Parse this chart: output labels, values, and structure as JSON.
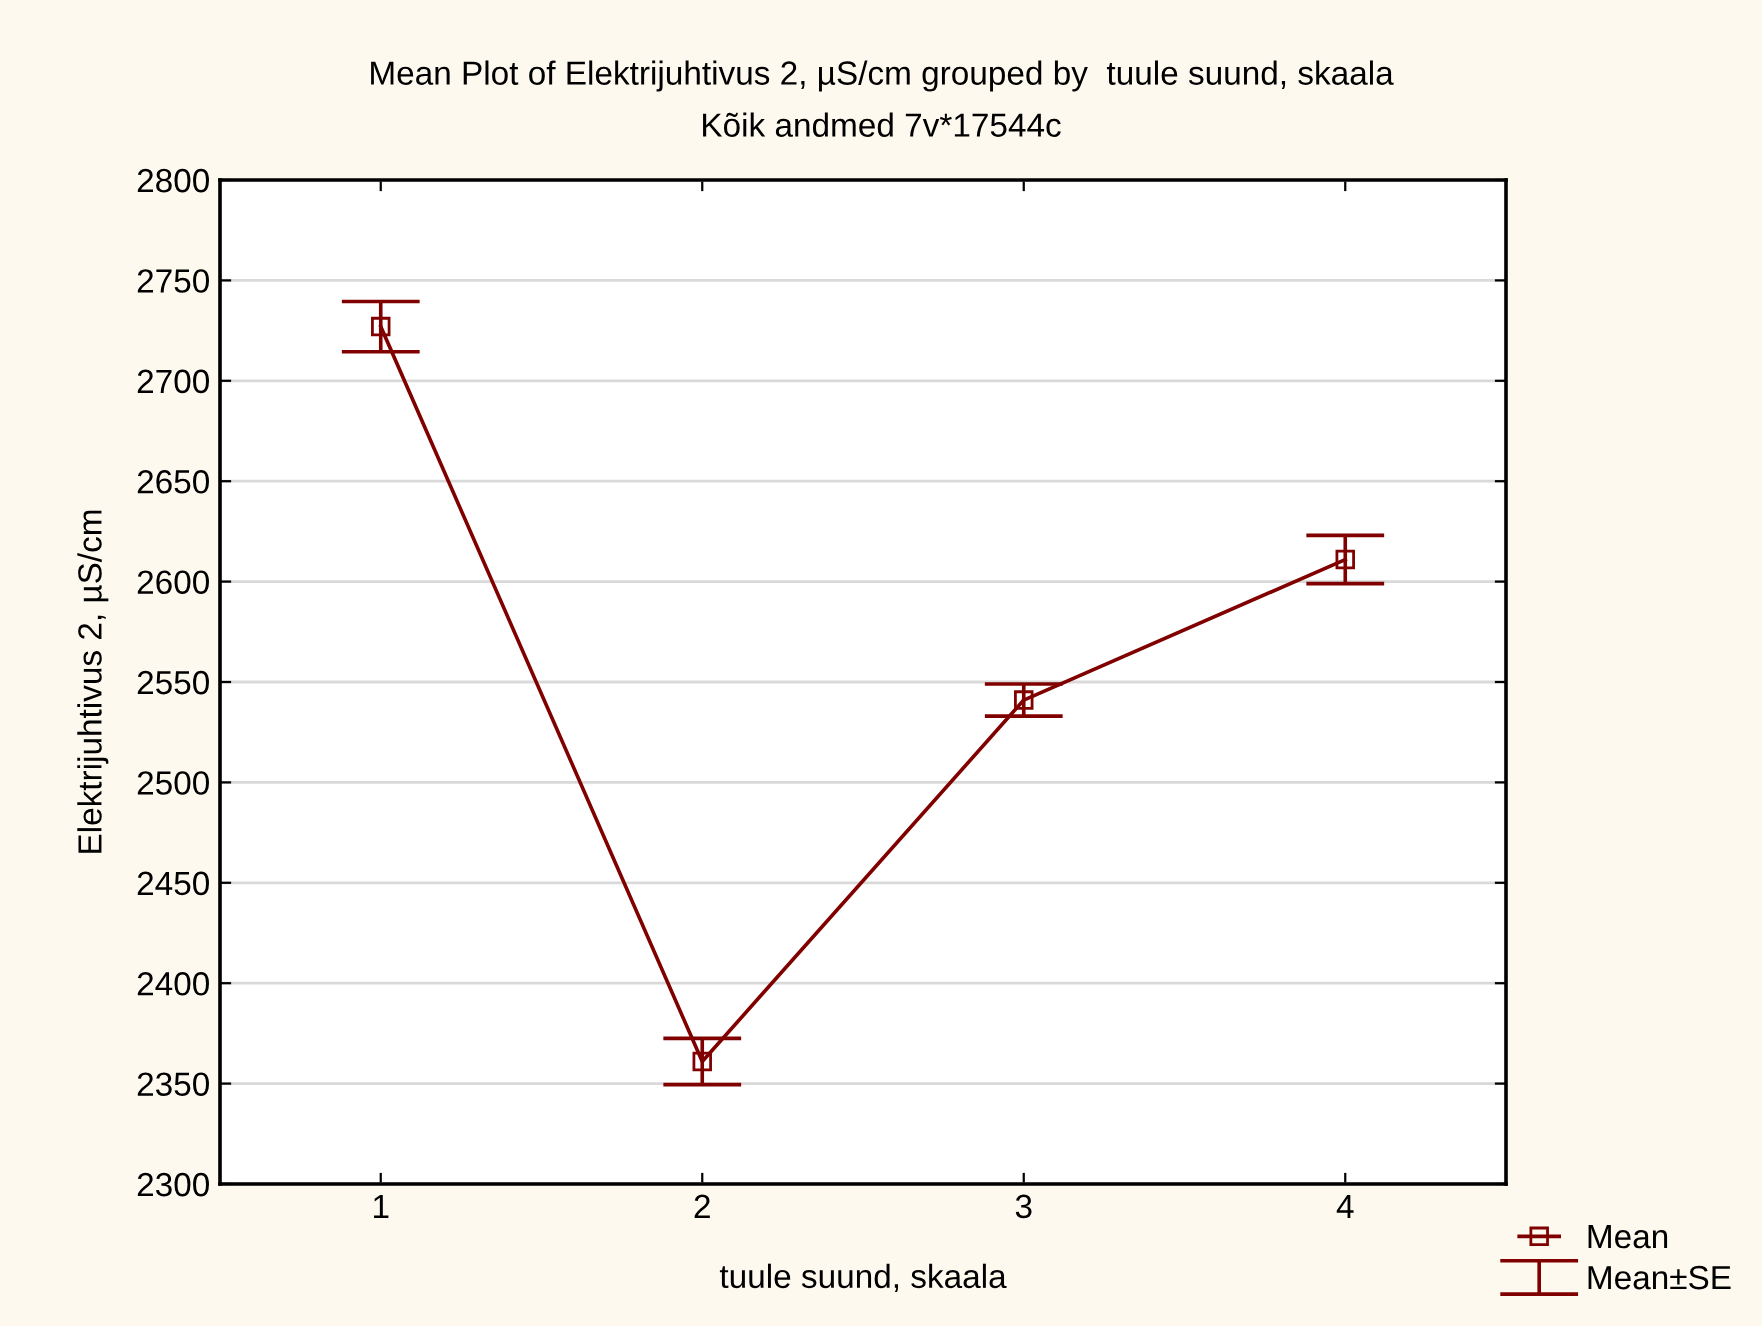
{
  "chart_data": {
    "type": "line",
    "title": "Mean Plot of Elektrijuhtivus 2, µS/cm grouped by  tuule suund, skaala",
    "subtitle": "Kõik andmed 7v*17544c",
    "xlabel": "tuule suund, skaala",
    "ylabel": "Elektrijuhtivus 2, µS/cm",
    "categories": [
      "1",
      "2",
      "3",
      "4"
    ],
    "series": [
      {
        "name": "Mean",
        "color": "#800000",
        "values": [
          2727,
          2361,
          2541,
          2611
        ],
        "errors": [
          12.5,
          11.5,
          8,
          12
        ]
      }
    ],
    "annotations": [
      "Mean±SE"
    ],
    "ylim": [
      2300,
      2800
    ],
    "yticks": [
      2300,
      2350,
      2400,
      2450,
      2500,
      2550,
      2600,
      2650,
      2700,
      2750,
      2800
    ],
    "grid": "y",
    "legend": "bottom right",
    "marker": "square",
    "line_style": "solid"
  }
}
